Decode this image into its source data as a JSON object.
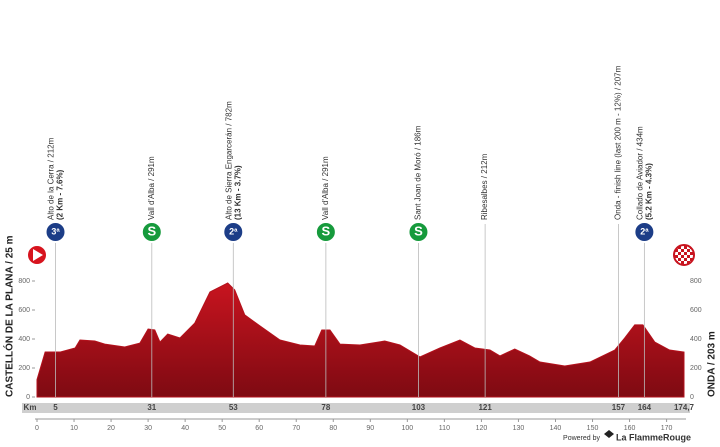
{
  "chart_data": {
    "type": "area",
    "color": "#b3111c",
    "x": [
      0,
      2.2,
      6.2,
      10.3,
      11.6,
      15.6,
      18.3,
      23.7,
      27.8,
      30,
      31.8,
      33.2,
      35.3,
      38.6,
      42.6,
      46.7,
      49.4,
      51.5,
      53.4,
      56.1,
      60.2,
      65.6,
      71,
      75,
      76.9,
      79.1,
      81.8,
      87.2,
      93.9,
      98,
      103.4,
      108.8,
      114.2,
      118.2,
      122.3,
      125,
      129,
      133,
      135.8,
      142.5,
      149.3,
      156,
      158.7,
      161.4,
      163.6,
      166.8,
      170.8,
      174.7
    ],
    "values": [
      120,
      310,
      310,
      338,
      393,
      386,
      365,
      345,
      372,
      469,
      462,
      379,
      434,
      407,
      510,
      724,
      759,
      786,
      738,
      566,
      490,
      393,
      359,
      352,
      462,
      462,
      365,
      359,
      386,
      359,
      276,
      338,
      393,
      338,
      324,
      283,
      331,
      283,
      241,
      214,
      241,
      324,
      407,
      497,
      497,
      379,
      324,
      310
    ],
    "xlim": [
      0,
      174.7
    ],
    "ylim": [
      0,
      800
    ],
    "xticks": [
      0,
      10,
      20,
      30,
      40,
      50,
      60,
      70,
      80,
      90,
      100,
      110,
      120,
      130,
      140,
      150,
      160,
      170
    ],
    "yticks": [
      0,
      200,
      400,
      600,
      800
    ],
    "start_label": "CASTELLÓN DE LA PLANA / 25 m",
    "finish_label": "ONDA / 203 m",
    "km_label": "Km",
    "finish_km": {
      "value": 174.7,
      "label": "174,7"
    },
    "waypoints": [
      {
        "km": 5,
        "name": "Alto de la Cerra / 212m",
        "detail": "(2 Km - 7.6%)",
        "icon": "3ª",
        "kind": "mountain"
      },
      {
        "km": 31,
        "name": "Vall d'Alba / 291m",
        "icon": "S",
        "kind": "sprint"
      },
      {
        "km": 53,
        "name": "Alto de Sierra Engarcerán / 782m",
        "detail": "(13 Km - 3.7%)",
        "icon": "2ª",
        "kind": "mountain"
      },
      {
        "km": 78,
        "name": "Vall d'Alba / 291m",
        "icon": "S",
        "kind": "sprint"
      },
      {
        "km": 103,
        "name": "Sant Joan de Moró / 186m",
        "icon": "S",
        "kind": "sprint"
      },
      {
        "km": 121,
        "name": "Ribesalbes / 212m"
      },
      {
        "km": 157,
        "name": "Onda - finish line (last 200 m - 12%) / 207m"
      },
      {
        "km": 164,
        "name": "Collado de Aviador / 434m",
        "detail": "(5.2 Km - 4.3%)",
        "icon": "2ª",
        "kind": "mountain"
      }
    ],
    "footer": {
      "powered": "Powered by",
      "brand": "La FlammeRouge"
    }
  }
}
